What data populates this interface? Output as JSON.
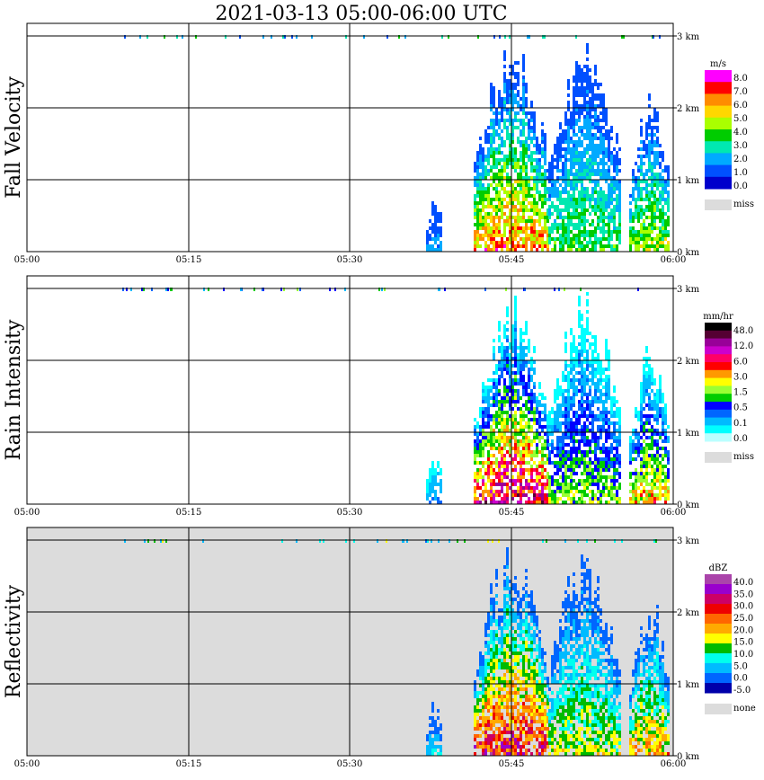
{
  "title": "2021-03-13   05:00-06:00 UTC",
  "chart_data": [
    {
      "type": "heatmap",
      "name": "Fall Velocity",
      "ylabel": "Fall Velocity",
      "x_ticks": [
        "05:00",
        "05:15",
        "05:30",
        "05:45",
        "06:00"
      ],
      "y_ticks": [
        "0 km",
        "1 km",
        "2 km",
        "3 km"
      ],
      "ylim": [
        0,
        3.5
      ],
      "background": "#ffffff",
      "legend": {
        "unit": "m/s",
        "labels": [
          "8.0",
          "7.0",
          "6.0",
          "5.0",
          "4.0",
          "3.0",
          "2.0",
          "1.0",
          "0.0"
        ],
        "colors": [
          "#ff00ff",
          "#ff0000",
          "#ff8c00",
          "#ffd700",
          "#aaff00",
          "#00cc00",
          "#00e8b0",
          "#00aaff",
          "#0050ff",
          "#0000cc"
        ],
        "missing_label": "miss",
        "missing_color": "#dcdcdc"
      }
    },
    {
      "type": "heatmap",
      "name": "Rain Intensity",
      "ylabel": "Rain Intensity",
      "x_ticks": [
        "05:00",
        "05:15",
        "05:30",
        "05:45",
        "06:00"
      ],
      "y_ticks": [
        "0 km",
        "1 km",
        "2 km",
        "3 km"
      ],
      "ylim": [
        0,
        3.5
      ],
      "background": "#ffffff",
      "legend": {
        "unit": "mm/hr",
        "labels": [
          "48.0",
          "12.0",
          "6.0",
          "3.0",
          "1.5",
          "0.5",
          "0.1",
          "0.0"
        ],
        "colors": [
          "#000000",
          "#550033",
          "#990099",
          "#cc00cc",
          "#ff0066",
          "#ff0000",
          "#ff9900",
          "#ffff00",
          "#99ff33",
          "#00cc00",
          "#0000ff",
          "#0066ff",
          "#00bbff",
          "#00ffff",
          "#bbffff"
        ],
        "missing_label": "miss",
        "missing_color": "#dcdcdc"
      }
    },
    {
      "type": "heatmap",
      "name": "Reflectivity",
      "ylabel": "Reflectivity",
      "x_ticks": [
        "05:00",
        "05:15",
        "05:30",
        "05:45",
        "06:00"
      ],
      "y_ticks": [
        "0 km",
        "1 km",
        "2 km",
        "3 km"
      ],
      "ylim": [
        0,
        3.5
      ],
      "background": "#dcdcdc",
      "legend": {
        "unit": "dBZ",
        "labels": [
          "40.0",
          "35.0",
          "30.0",
          "25.0",
          "20.0",
          "15.0",
          "10.0",
          "5.0",
          "0.0",
          "-5.0"
        ],
        "colors": [
          "#aa44aa",
          "#9900cc",
          "#cc0066",
          "#ee0000",
          "#ff6600",
          "#ffaa00",
          "#ffff00",
          "#00bb00",
          "#00ffee",
          "#00bbff",
          "#0066ff",
          "#0000aa"
        ],
        "missing_label": "none",
        "missing_color": "#dcdcdc"
      }
    }
  ]
}
